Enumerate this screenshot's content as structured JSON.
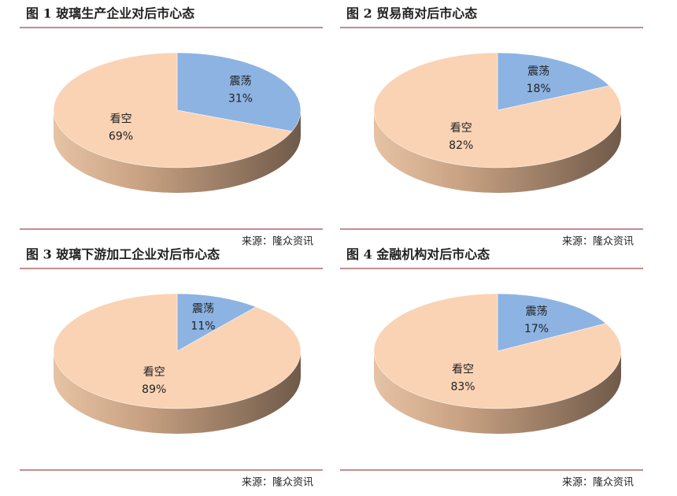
{
  "chart_data": [
    {
      "type": "pie",
      "title": "图 1  玻璃生产企业对后市心态",
      "categories": [
        "震荡",
        "看空"
      ],
      "values": [
        31,
        69
      ],
      "value_labels": [
        "31%",
        "69%"
      ],
      "colors": [
        "#8db3e2",
        "#fad3b4"
      ],
      "source": "来源：隆众资讯"
    },
    {
      "type": "pie",
      "title": "图 2  贸易商对后市心态",
      "categories": [
        "震荡",
        "看空"
      ],
      "values": [
        18,
        82
      ],
      "value_labels": [
        "18%",
        "82%"
      ],
      "colors": [
        "#8db3e2",
        "#fad3b4"
      ],
      "source": "来源：隆众资讯"
    },
    {
      "type": "pie",
      "title": "图 3  玻璃下游加工企业对后市心态",
      "categories": [
        "震荡",
        "看空"
      ],
      "values": [
        11,
        89
      ],
      "value_labels": [
        "11%",
        "89%"
      ],
      "colors": [
        "#8db3e2",
        "#fad3b4"
      ],
      "source": "来源：隆众资讯"
    },
    {
      "type": "pie",
      "title": "图 4 金融机构对后市心态",
      "categories": [
        "震荡",
        "看空"
      ],
      "values": [
        17,
        83
      ],
      "value_labels": [
        "17%",
        "83%"
      ],
      "colors": [
        "#8db3e2",
        "#fad3b4"
      ],
      "source": "来源：隆众资讯"
    }
  ]
}
